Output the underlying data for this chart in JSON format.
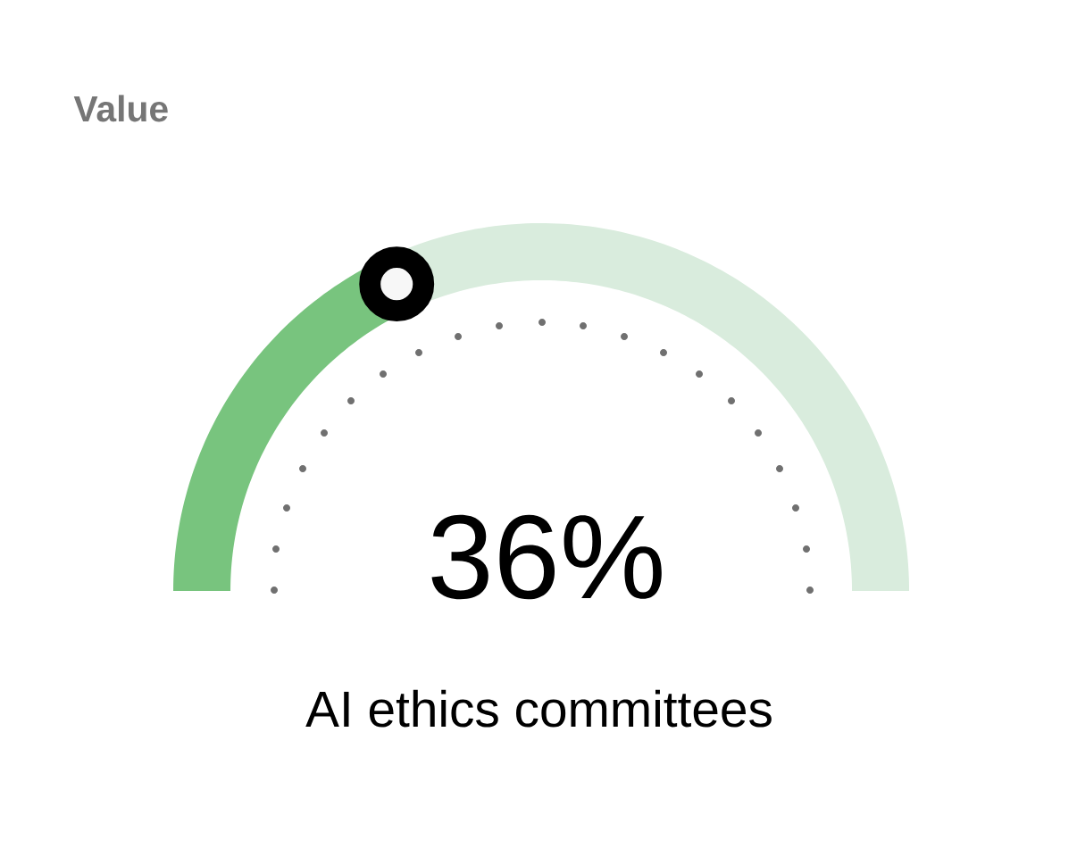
{
  "chart_data": {
    "type": "donut",
    "title": "Value",
    "subtitle": "AI ethics committees",
    "categories": [
      null,
      null
    ],
    "values": [
      36,
      64
    ],
    "colors": [
      "#78c47e",
      "#d9ecdd"
    ],
    "annotations": [
      "36%"
    ]
  }
}
